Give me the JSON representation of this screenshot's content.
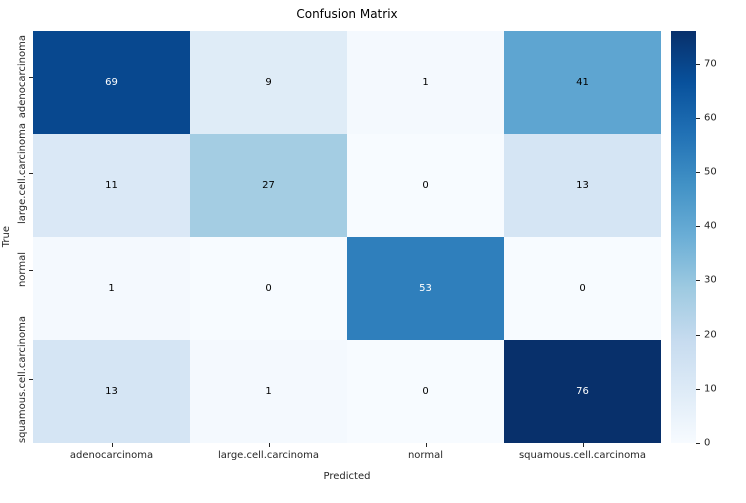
{
  "title": "Confusion Matrix",
  "chart_data": {
    "type": "heatmap",
    "title": "Confusion Matrix",
    "xlabel": "Predicted",
    "ylabel": "True",
    "x_categories": [
      "adenocarcinoma",
      "large.cell.carcinoma",
      "normal",
      "squamous.cell.carcinoma"
    ],
    "y_categories": [
      "adenocarcinoma",
      "large.cell.carcinoma",
      "normal",
      "squamous.cell.carcinoma"
    ],
    "values": [
      [
        69,
        9,
        1,
        41
      ],
      [
        11,
        27,
        0,
        13
      ],
      [
        1,
        0,
        53,
        0
      ],
      [
        13,
        1,
        0,
        76
      ]
    ],
    "vmin": 0,
    "vmax": 76,
    "colormap": "Blues",
    "colorbar_ticks": [
      0,
      10,
      20,
      30,
      40,
      50,
      60,
      70
    ],
    "legend_position": "right-colorbar",
    "grid": false,
    "annotation_colors": {
      "light_text": "#ffffff",
      "dark_text": "#000000"
    }
  }
}
